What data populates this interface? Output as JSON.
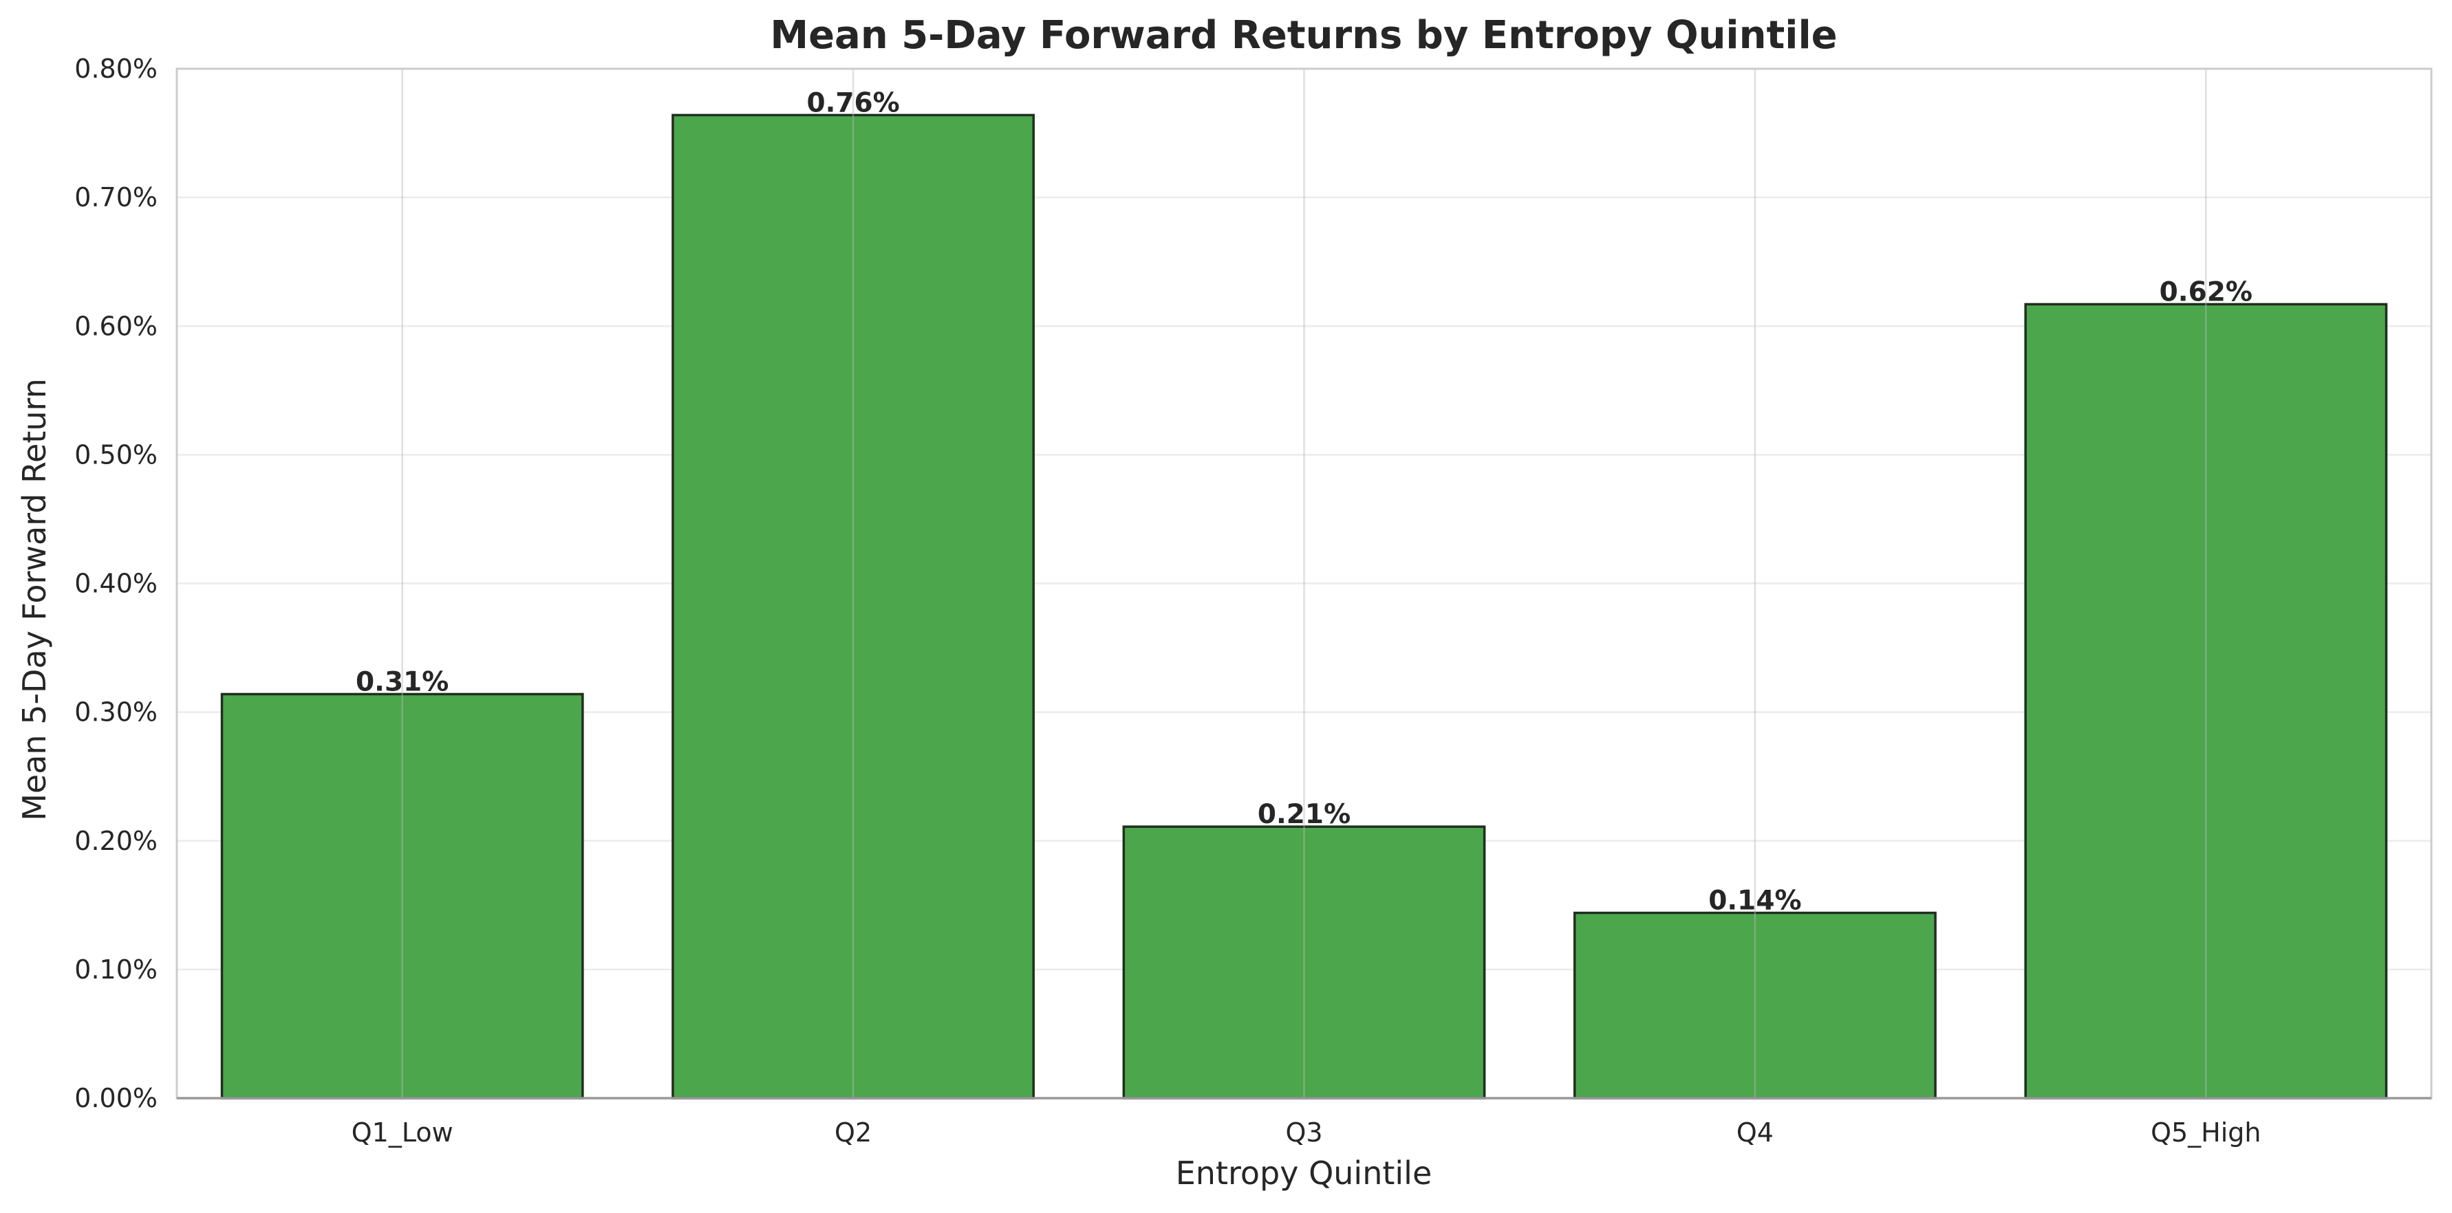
{
  "chart_data": {
    "type": "bar",
    "title": "Mean 5-Day Forward Returns by Entropy Quintile",
    "xlabel": "Entropy Quintile",
    "ylabel": "Mean 5-Day Forward Return",
    "categories": [
      "Q1_Low",
      "Q2",
      "Q3",
      "Q4",
      "Q5_High"
    ],
    "values": [
      0.314,
      0.764,
      0.211,
      0.144,
      0.617
    ],
    "data_labels": [
      "0.31%",
      "0.76%",
      "0.21%",
      "0.14%",
      "0.62%"
    ],
    "ylim": [
      0,
      0.8
    ],
    "yticks": [
      0,
      0.1,
      0.2,
      0.3,
      0.4,
      0.5,
      0.6,
      0.7,
      0.8
    ],
    "ytick_labels": [
      "0.00%",
      "0.10%",
      "0.20%",
      "0.30%",
      "0.40%",
      "0.50%",
      "0.60%",
      "0.70%",
      "0.80%"
    ],
    "grid": true,
    "legend": "none",
    "colors": {
      "bar_fill": "#4ca64c",
      "bar_edge": "#1f2f1f",
      "grid": "#ebebeb",
      "axes_edge": "#cccccc",
      "text": "#262626"
    }
  }
}
